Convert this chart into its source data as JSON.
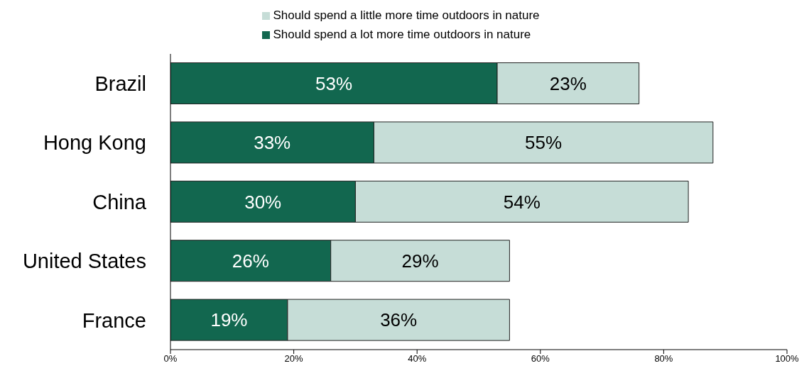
{
  "chart_data": {
    "type": "bar",
    "orientation": "horizontal",
    "stacked": true,
    "categories": [
      "Brazil",
      "Hong Kong",
      "China",
      "United States",
      "France"
    ],
    "series": [
      {
        "name": "Should spend a lot more time outdoors in nature",
        "color": "#12674f",
        "values": [
          53,
          33,
          30,
          26,
          19
        ],
        "value_labels": [
          "53%",
          "33%",
          "30%",
          "26%",
          "19%"
        ]
      },
      {
        "name": "Should spend a little more time outdoors in nature",
        "color": "#c6ddd7",
        "values": [
          23,
          55,
          54,
          29,
          36
        ],
        "value_labels": [
          "23%",
          "55%",
          "54%",
          "29%",
          "36%"
        ]
      }
    ],
    "xlim": [
      0,
      100
    ],
    "xticks": [
      {
        "value": 0,
        "label": "0%"
      },
      {
        "value": 20,
        "label": "20%"
      },
      {
        "value": 40,
        "label": "40%"
      },
      {
        "value": 60,
        "label": "60%"
      },
      {
        "value": 80,
        "label": "80%"
      },
      {
        "value": 100,
        "label": "100%"
      }
    ],
    "legend": "top",
    "grid": false
  }
}
